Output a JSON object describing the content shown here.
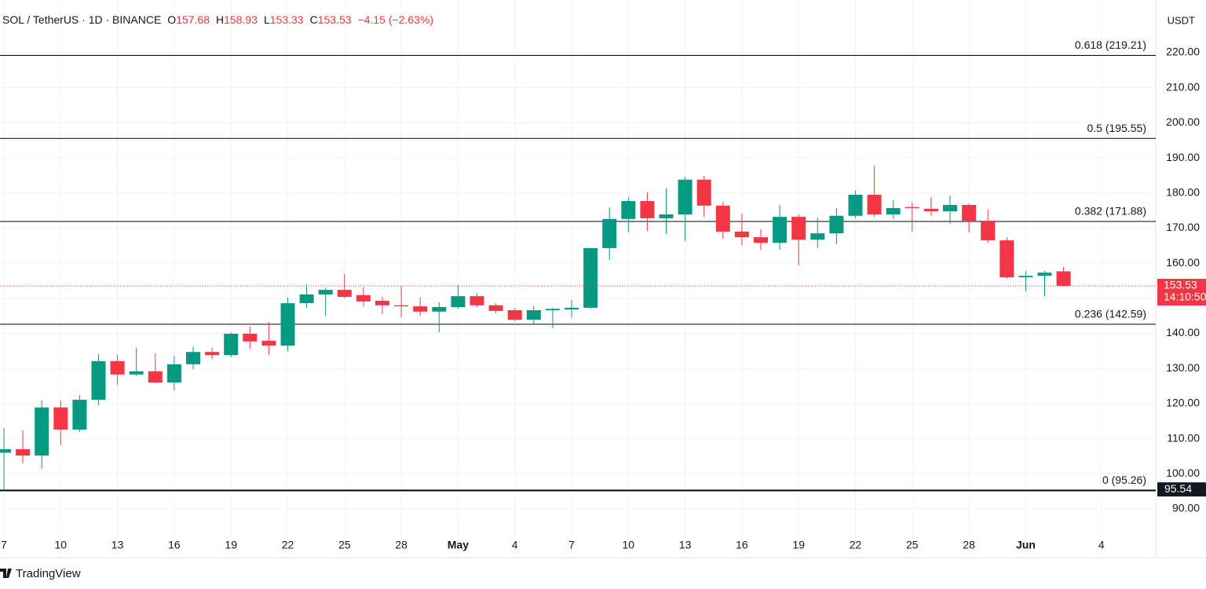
{
  "chart_data": {
    "type": "candlestick",
    "symbol_label": "SOL / TetherUS · 1D · BINANCE",
    "ohlc_labels": [
      "O",
      "H",
      "L",
      "C"
    ],
    "change_label": "−4.15 (−2.63%)",
    "currency": "USDT",
    "countdown": "14:10:50",
    "branding": "TradingView",
    "up_color": "#089981",
    "down_color": "#f23645",
    "categories": [
      "7",
      null,
      null,
      "10",
      null,
      null,
      "13",
      null,
      null,
      "16",
      null,
      null,
      "19",
      null,
      null,
      "22",
      null,
      null,
      "25",
      null,
      null,
      "28",
      null,
      null,
      "May",
      null,
      null,
      "4",
      null,
      null,
      "7",
      null,
      null,
      "10",
      null,
      null,
      "13",
      null,
      null,
      "16",
      null,
      null,
      "19",
      null,
      null,
      "22",
      null,
      null,
      "25",
      null,
      null,
      "28",
      null,
      null,
      "Jun",
      null,
      null,
      null,
      "4",
      null,
      null
    ],
    "open": [
      106,
      107,
      105.2,
      118.9,
      112.6,
      121.1,
      132.1,
      128.3,
      129.2,
      126,
      131.2,
      134.7,
      133.8,
      139.9,
      137.9,
      136.5,
      148.6,
      151.1,
      152.4,
      150.9,
      149.3,
      148,
      147.7,
      146.2,
      147.5,
      150.6,
      148,
      146.6,
      143.9,
      146.6,
      146.8,
      147.3,
      164.3,
      172.6,
      177.7,
      172.8,
      173.9,
      183.8,
      176.4,
      169,
      167.4,
      165.8,
      173.2,
      166.7,
      168.5,
      173.5,
      179.5,
      173.9,
      176,
      175.5,
      174.8,
      176.6,
      172.1,
      166.5,
      156,
      156.4,
      157.68,
      null,
      null,
      null,
      null
    ],
    "high": [
      113,
      112.4,
      120.9,
      120.9,
      122.4,
      134.1,
      133.9,
      135.9,
      134.3,
      133.6,
      136.1,
      135.9,
      140.3,
      141.9,
      143.2,
      150.2,
      154,
      153.1,
      156.9,
      153.1,
      150.4,
      153.5,
      150.2,
      148.8,
      153.8,
      151.5,
      148.6,
      147.3,
      147.7,
      147.3,
      149.5,
      164.4,
      175.9,
      178.8,
      180.2,
      181.3,
      184.6,
      184.9,
      177.5,
      174.1,
      169.7,
      176.6,
      173.9,
      173,
      175.7,
      180.6,
      187.8,
      177.9,
      177.3,
      178.8,
      179.3,
      177,
      175.2,
      167.4,
      157.8,
      157.8,
      158.93,
      null,
      null,
      null,
      null
    ],
    "low": [
      95.3,
      103,
      101.4,
      108.1,
      111.9,
      119.5,
      125.3,
      127.8,
      125.8,
      123.8,
      129.8,
      132.7,
      133.2,
      135.6,
      133.8,
      134.9,
      147.3,
      145,
      150,
      147.7,
      145.5,
      144.6,
      145,
      140.3,
      147,
      147.5,
      145.7,
      143.5,
      142.8,
      141.5,
      144.4,
      147,
      160.9,
      168.8,
      169.2,
      168.3,
      166.3,
      173.2,
      167,
      165.2,
      163.8,
      163.8,
      159.4,
      164.3,
      165.4,
      172.8,
      173.2,
      172.6,
      169,
      173.5,
      171.2,
      168.8,
      165.8,
      155.6,
      152,
      150.6,
      153.33,
      null,
      null,
      null,
      null
    ],
    "close": [
      107,
      105.2,
      118.9,
      112.6,
      121.1,
      132.1,
      128.3,
      129.2,
      126,
      131.2,
      134.7,
      133.8,
      139.9,
      137.7,
      136.5,
      148.6,
      151.1,
      152.4,
      150.4,
      149.1,
      148,
      147.7,
      146.2,
      147.5,
      150.6,
      148,
      146.4,
      143.9,
      146.6,
      147,
      147.3,
      164.3,
      172.6,
      177.7,
      172.8,
      173.9,
      183.8,
      176.4,
      169,
      167.4,
      165.8,
      173.2,
      166.7,
      168.5,
      173.5,
      179.5,
      173.9,
      175.7,
      175.7,
      174.8,
      176.6,
      172.1,
      166.5,
      156,
      156.4,
      157.3,
      153.53,
      null,
      null,
      null,
      null
    ],
    "fib_levels": [
      {
        "value": 219.21,
        "label": "0.618 (219.21)"
      },
      {
        "value": 195.55,
        "label": "0.5 (195.55)"
      },
      {
        "value": 171.88,
        "label": "0.382 (171.88)"
      },
      {
        "value": 142.59,
        "label": "0.236 (142.59)"
      },
      {
        "value": 95.26,
        "label": "0 (95.26)"
      }
    ],
    "marker_price": 95.54,
    "ylim": [
      82.83,
      232.75
    ],
    "yticks": [
      {
        "value": 90,
        "label": "90.00"
      },
      {
        "value": 100,
        "label": "100.00"
      },
      {
        "value": 110,
        "label": "110.00"
      },
      {
        "value": 120,
        "label": "120.00"
      },
      {
        "value": 130,
        "label": "130.00"
      },
      {
        "value": 140,
        "label": "140.00"
      },
      {
        "value": 150,
        "label": "150.00"
      },
      {
        "value": 160,
        "label": "160.00"
      },
      {
        "value": 170,
        "label": "170.00"
      },
      {
        "value": 180,
        "label": "180.00"
      },
      {
        "value": 190,
        "label": "190.00"
      },
      {
        "value": 200,
        "label": "200.00"
      },
      {
        "value": 210,
        "label": "210.00"
      },
      {
        "value": 220,
        "label": "220.00"
      }
    ],
    "grid": true
  }
}
